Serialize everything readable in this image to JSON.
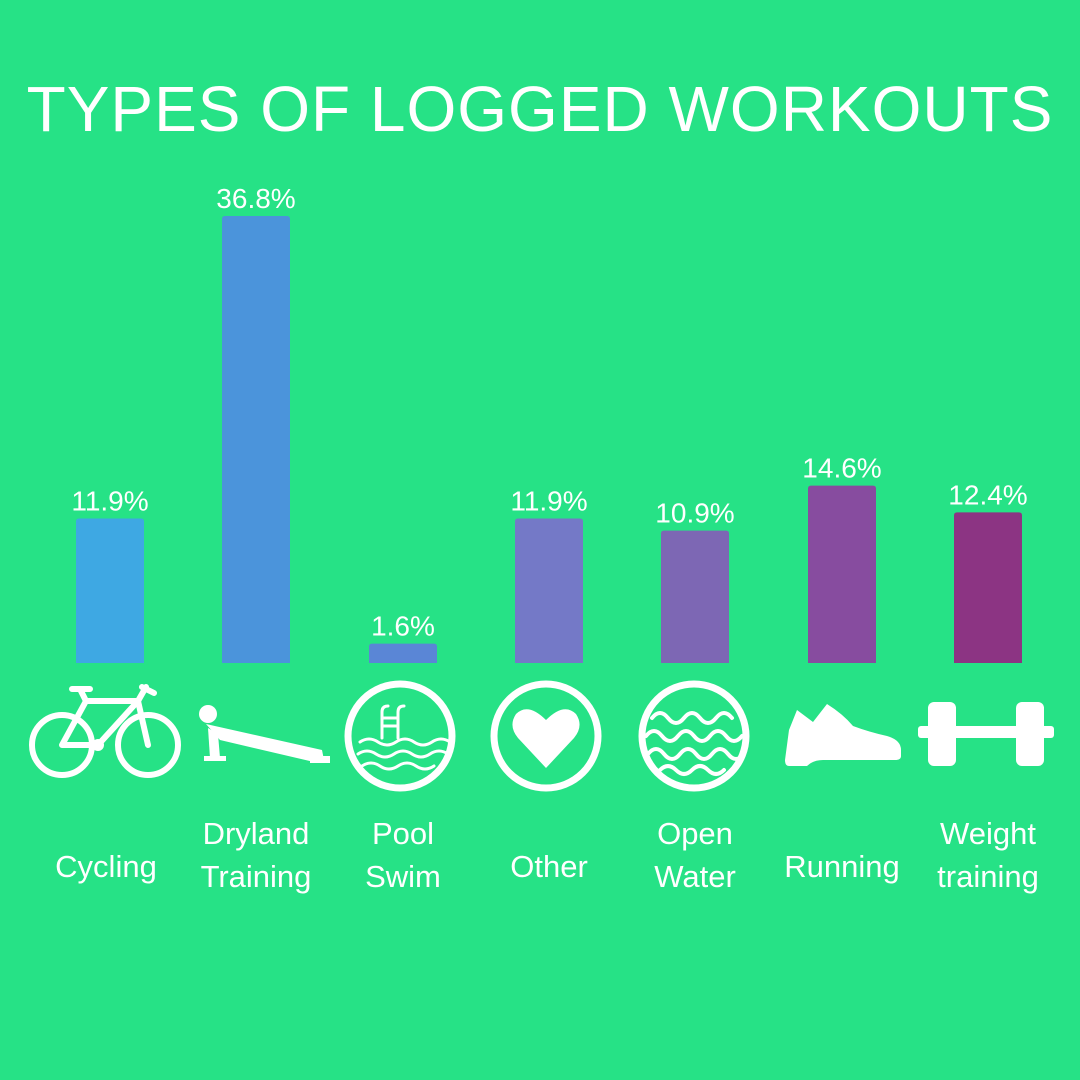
{
  "title": "TYPES OF LOGGED WORKOUTS",
  "chart_data": {
    "type": "bar",
    "title": "TYPES OF LOGGED WORKOUTS",
    "categories": [
      "Cycling",
      "Dryland Training",
      "Pool Swim",
      "Other",
      "Open Water",
      "Running",
      "Weight training"
    ],
    "category_labels": [
      [
        "Cycling"
      ],
      [
        "Dryland",
        "Training"
      ],
      [
        "Pool",
        "Swim"
      ],
      [
        "Other"
      ],
      [
        "Open",
        "Water"
      ],
      [
        "Running"
      ],
      [
        "Weight",
        "training"
      ]
    ],
    "values": [
      11.9,
      36.8,
      1.6,
      11.9,
      10.9,
      14.6,
      12.4
    ],
    "value_labels": [
      "11.9%",
      "36.8%",
      "1.6%",
      "11.9%",
      "10.9%",
      "14.6%",
      "12.4%"
    ],
    "unit": "%",
    "ylim": [
      0,
      36.8
    ],
    "grid": false,
    "legend": "none",
    "bar_colors": [
      "#3ea8e3",
      "#4b94db",
      "#5a86d6",
      "#7479c7",
      "#7d67b4",
      "#874c9f",
      "#8c3483"
    ],
    "icons": [
      "bicycle-icon",
      "pushup-icon",
      "pool-icon",
      "heart-icon",
      "waves-icon",
      "shoe-icon",
      "dumbbell-icon"
    ]
  },
  "colors": {
    "background": "#26e286",
    "text": "#ffffff"
  }
}
